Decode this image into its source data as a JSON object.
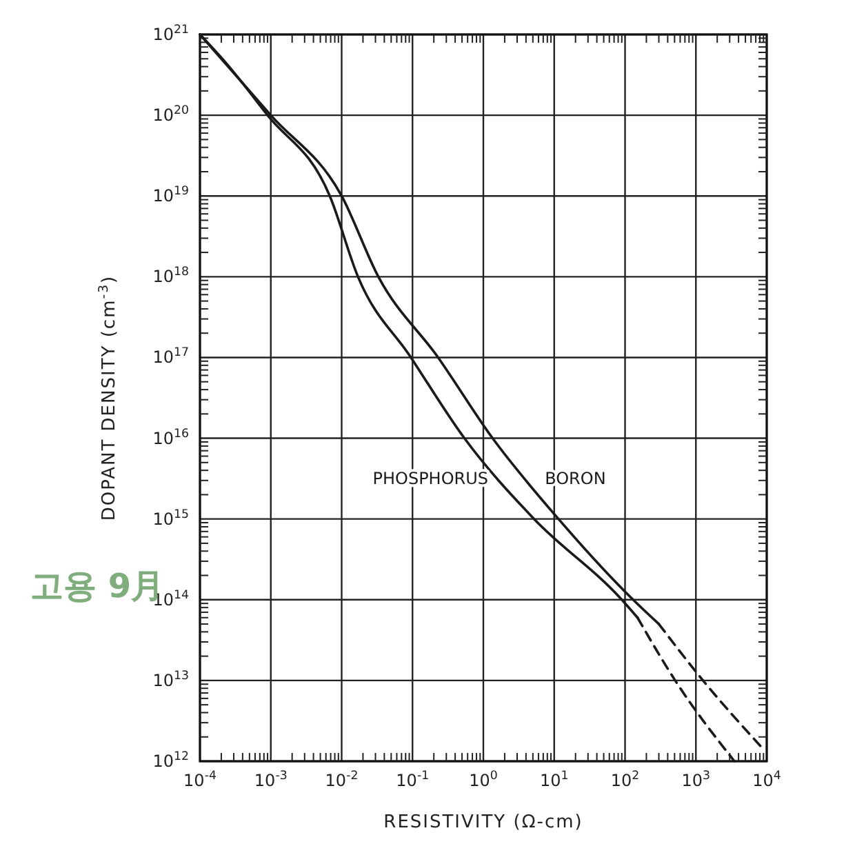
{
  "chart_data": {
    "type": "line",
    "xlabel": "RESISTIVITY (Ω-cm)",
    "ylabel": "DOPANT DENSITY (cm$^{-3}$)",
    "annotations": [
      "고용 9月"
    ],
    "log": "xy",
    "grid": true,
    "xlim": [
      0.0001,
      10000
    ],
    "ylim": [
      1000000000000.0,
      1e+21
    ],
    "xticks": [
      {
        "value": 0.0001,
        "label": "10$^{-4}$"
      },
      {
        "value": 0.001,
        "label": "10$^{-3}$"
      },
      {
        "value": 0.01,
        "label": "10$^{-2}$"
      },
      {
        "value": 0.1,
        "label": "10$^{-1}$"
      },
      {
        "value": 1,
        "label": "10$^{0}$"
      },
      {
        "value": 10,
        "label": "10$^{1}$"
      },
      {
        "value": 100,
        "label": "10$^{2}$"
      },
      {
        "value": 1000,
        "label": "10$^{3}$"
      },
      {
        "value": 10000,
        "label": "10$^{4}$"
      }
    ],
    "yticks": [
      {
        "value": 1000000000000.0,
        "label": "10$^{12}$"
      },
      {
        "value": 10000000000000.0,
        "label": "10$^{13}$"
      },
      {
        "value": 100000000000000.0,
        "label": "10$^{14}$"
      },
      {
        "value": 1000000000000000.0,
        "label": "10$^{15}$"
      },
      {
        "value": 1e+16,
        "label": "10$^{16}$"
      },
      {
        "value": 1e+17,
        "label": "10$^{17}$"
      },
      {
        "value": 1e+18,
        "label": "10$^{18}$"
      },
      {
        "value": 1e+19,
        "label": "10$^{19}$"
      },
      {
        "value": 1e+20,
        "label": "10$^{20}$"
      },
      {
        "value": 1e+21,
        "label": "10$^{21}$"
      }
    ],
    "series": [
      {
        "name": "PHOSPHORUS",
        "color": "#1a1a1a",
        "line_style": "solid",
        "x": [
          0.0001,
          0.00023,
          0.0009,
          0.0068,
          0.017,
          0.095,
          0.54,
          5.2,
          90,
          150
        ],
        "values": [
          1e+21,
          4.5e+20,
          1e+20,
          1e+19,
          1e+18,
          1e+17,
          1e+16,
          1000000000000000.0,
          100000000000000.0,
          60000000000000.0
        ]
      },
      {
        "color": "#1a1a1a",
        "line_style": "dashed",
        "x": [
          150,
          510,
          3500
        ],
        "values": [
          60000000000000.0,
          10000000000000.0,
          1000000000000.0
        ]
      },
      {
        "name": "BORON",
        "color": "#1a1a1a",
        "line_style": "solid",
        "x": [
          0.0001,
          0.001,
          0.01,
          0.033,
          0.23,
          1.35,
          11.5,
          130,
          300
        ],
        "values": [
          1e+21,
          1e+20,
          1e+19,
          1e+18,
          1e+17,
          1e+16,
          1000000000000000.0,
          100000000000000.0,
          50000000000000.0
        ]
      },
      {
        "color": "#1a1a1a",
        "line_style": "dashed",
        "x": [
          300,
          1260,
          8700
        ],
        "values": [
          50000000000000.0,
          10000000000000.0,
          1450000000000.0
        ]
      }
    ]
  }
}
